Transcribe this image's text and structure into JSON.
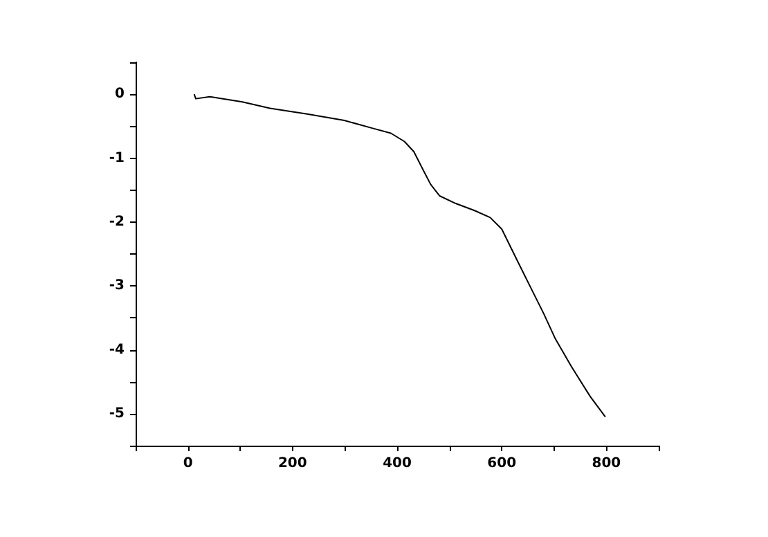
{
  "chart_data": {
    "type": "line",
    "color": "#000000",
    "marker": "none",
    "line_style": "solid",
    "grid": false,
    "x": [
      12,
      15,
      42,
      104,
      157,
      228,
      299,
      352,
      388,
      414,
      432,
      450,
      464,
      481,
      512,
      548,
      578,
      600,
      627,
      658,
      680,
      702,
      733,
      769,
      798
    ],
    "values": [
      0.0,
      -0.07,
      -0.04,
      -0.12,
      -0.22,
      -0.31,
      -0.41,
      -0.53,
      -0.61,
      -0.74,
      -0.9,
      -1.19,
      -1.41,
      -1.59,
      -1.71,
      -1.82,
      -1.93,
      -2.11,
      -2.56,
      -3.07,
      -3.43,
      -3.82,
      -4.26,
      -4.73,
      -5.05
    ],
    "xlim": [
      -100,
      900
    ],
    "xticks": [
      {
        "value": -100,
        "label": null
      },
      0,
      {
        "value": 100,
        "label": null
      },
      200,
      {
        "value": 300,
        "label": null
      },
      400,
      {
        "value": 500,
        "label": null
      },
      600,
      {
        "value": 700,
        "label": null
      },
      800,
      {
        "value": 900,
        "label": null
      }
    ],
    "ylim": [
      -5.5,
      0.5
    ],
    "yticks": [
      {
        "value": -5.5,
        "label": null
      },
      -5,
      {
        "value": -4.5,
        "label": null
      },
      -4,
      {
        "value": -3.5,
        "label": null
      },
      -3,
      {
        "value": -2.5,
        "label": null
      },
      -2,
      {
        "value": -1.5,
        "label": null
      },
      -1,
      {
        "value": -0.5,
        "label": null
      },
      0,
      {
        "value": 0.5,
        "label": null
      }
    ]
  }
}
